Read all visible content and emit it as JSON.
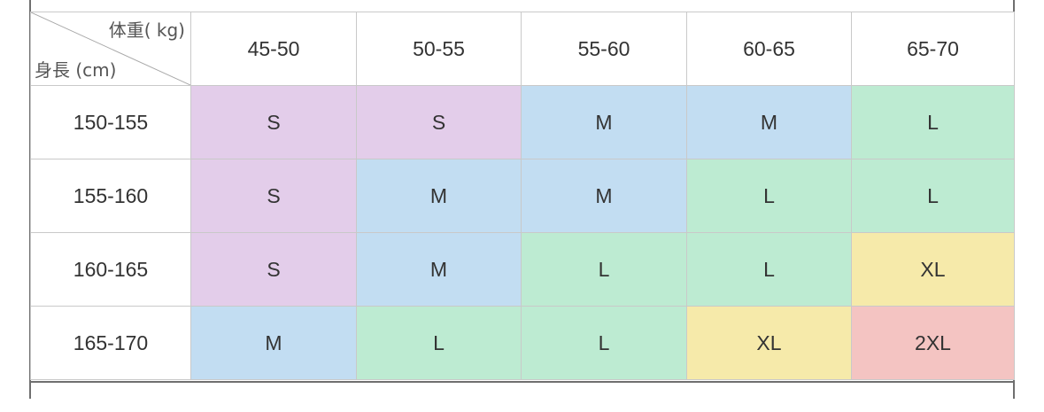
{
  "corner": {
    "weight_label": "体重( kg)",
    "height_label": "身長 (cm)"
  },
  "columns": [
    "45-50",
    "50-55",
    "55-60",
    "60-65",
    "65-70"
  ],
  "rows": [
    {
      "height": "150-155",
      "sizes": [
        "S",
        "S",
        "M",
        "M",
        "L"
      ]
    },
    {
      "height": "155-160",
      "sizes": [
        "S",
        "M",
        "M",
        "L",
        "L"
      ]
    },
    {
      "height": "160-165",
      "sizes": [
        "S",
        "M",
        "L",
        "L",
        "XL"
      ]
    },
    {
      "height": "165-170",
      "sizes": [
        "M",
        "L",
        "L",
        "XL",
        "2XL"
      ]
    }
  ],
  "size_colors": {
    "S": "#e3cdea",
    "M": "#c2ddf2",
    "L": "#bdebd2",
    "XL": "#f6eaaa",
    "2XL": "#f4c4c2"
  }
}
